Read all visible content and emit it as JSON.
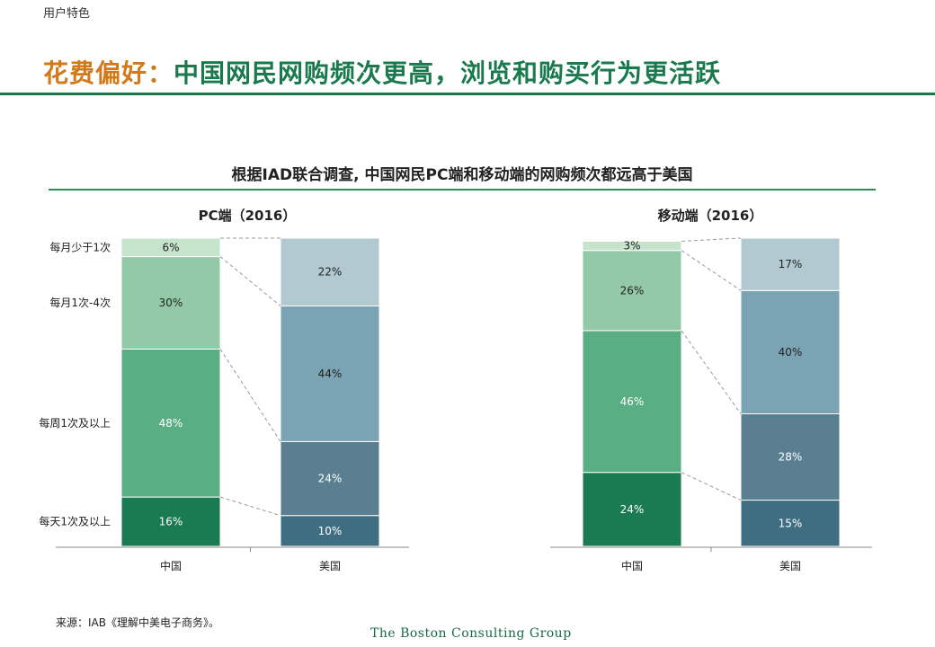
{
  "header": {
    "section": "用户特色",
    "title_prefix": "花费偏好：",
    "title_main": "中国网民网购频次更高，浏览和购买行为更活跃"
  },
  "subtitle": "根据IAD联合调查, 中国网民PC端和移动端的网购频次都远高于美国",
  "footer": {
    "source": "来源：IAB《理解中美电子商务》。",
    "brand": "The Boston Consulting Group"
  },
  "colors": {
    "china": [
      "#1a7a52",
      "#5aae84",
      "#93c9a6",
      "#c6e4cc"
    ],
    "usa": [
      "#3f6e83",
      "#5a7f90",
      "#7aa3b4",
      "#b2c9d2"
    ]
  },
  "chart_data": [
    {
      "type": "bar",
      "stacked": true,
      "title": "PC端（2016）",
      "categories": [
        "中国",
        "美国"
      ],
      "series": [
        {
          "name": "每天1次及以上",
          "values": [
            16,
            10
          ]
        },
        {
          "name": "每周1次及以上",
          "values": [
            48,
            24
          ]
        },
        {
          "name": "每月1次-4次",
          "values": [
            30,
            44
          ]
        },
        {
          "name": "每月少于1次",
          "values": [
            6,
            22
          ]
        }
      ],
      "labels": [
        [
          "16%",
          "48%",
          "30%",
          "6%"
        ],
        [
          "10%",
          "24%",
          "44%",
          "22%"
        ]
      ],
      "ylim": [
        0,
        100
      ]
    },
    {
      "type": "bar",
      "stacked": true,
      "title": "移动端（2016）",
      "categories": [
        "中国",
        "美国"
      ],
      "series": [
        {
          "name": "每天1次及以上",
          "values": [
            24,
            15
          ]
        },
        {
          "name": "每周1次及以上",
          "values": [
            46,
            28
          ]
        },
        {
          "name": "每月1次-4次",
          "values": [
            26,
            40
          ]
        },
        {
          "name": "每月少于1次",
          "values": [
            3,
            17
          ]
        }
      ],
      "labels": [
        [
          "24%",
          "46%",
          "26%",
          "3%"
        ],
        [
          "15%",
          "28%",
          "40%",
          "17%"
        ]
      ],
      "ylim": [
        0,
        100
      ]
    }
  ]
}
